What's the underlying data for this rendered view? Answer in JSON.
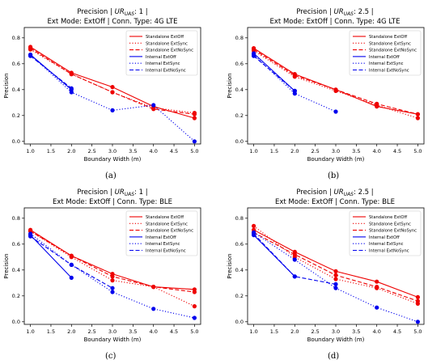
{
  "chart_data": [
    {
      "type": "line",
      "title_line1_prefix": "Precision | ",
      "title_line1_ur": "UR",
      "title_line1_sub": "UAS",
      "title_line1_suffix": ": 1 |",
      "title_line2": "Ext Mode: ExtOff | Conn. Type: 4G LTE",
      "xlabel": "Boundary  Width (m)",
      "ylabel": "Precision",
      "xlim": [
        0.85,
        5.15
      ],
      "ylim": [
        -0.02,
        0.88
      ],
      "xticks": [
        "1.0",
        "1.5",
        "2.0",
        "2.5",
        "3.0",
        "3.5",
        "4.0",
        "4.5",
        "5.0"
      ],
      "yticks": [
        "0.0",
        "0.2",
        "0.4",
        "0.6",
        "0.8"
      ],
      "legend_position": "top-right",
      "caption": "(a)",
      "series": [
        {
          "name": "Standalone ExtOff",
          "color": "#ee0000",
          "style": "solid",
          "x": [
            1,
            2,
            3,
            4,
            5
          ],
          "y": [
            0.73,
            0.53,
            0.42,
            0.27,
            0.18
          ]
        },
        {
          "name": "Standalone ExtSync",
          "color": "#ee0000",
          "style": "dotted",
          "x": [
            1,
            2,
            3,
            4,
            5
          ],
          "y": [
            0.71,
            0.52,
            0.38,
            0.26,
            0.22
          ]
        },
        {
          "name": "Standalone ExtNoSync",
          "color": "#ee0000",
          "style": "dashed",
          "x": [
            1,
            2,
            3,
            4,
            5
          ],
          "y": [
            0.72,
            0.52,
            0.38,
            0.25,
            0.21
          ]
        },
        {
          "name": "Internal ExtOff",
          "color": "#0000ee",
          "style": "solid",
          "x": [
            1,
            2
          ],
          "y": [
            0.67,
            0.4
          ]
        },
        {
          "name": "Internal ExtSync",
          "color": "#0000ee",
          "style": "dotted",
          "x": [
            1,
            2,
            3,
            4,
            5
          ],
          "y": [
            0.67,
            0.38,
            0.24,
            0.28,
            0.0
          ]
        },
        {
          "name": "Internal ExtNoSync",
          "color": "#0000ee",
          "style": "dashed",
          "x": [
            1,
            2
          ],
          "y": [
            0.66,
            0.41
          ]
        }
      ]
    },
    {
      "type": "line",
      "title_line1_prefix": "Precision | ",
      "title_line1_ur": "UR",
      "title_line1_sub": "UAS",
      "title_line1_suffix": ": 2.5 |",
      "title_line2": "Ext Mode: ExtOff | Conn. Type: 4G LTE",
      "xlabel": "Boundary  Width (m)",
      "ylabel": "Precision",
      "xlim": [
        0.85,
        5.15
      ],
      "ylim": [
        -0.02,
        0.88
      ],
      "xticks": [
        "1.0",
        "1.5",
        "2.0",
        "2.5",
        "3.0",
        "3.5",
        "4.0",
        "4.5",
        "5.0"
      ],
      "yticks": [
        "0.0",
        "0.2",
        "0.4",
        "0.6",
        "0.8"
      ],
      "legend_position": "top-right",
      "caption": "(b)",
      "series": [
        {
          "name": "Standalone ExtOff",
          "color": "#ee0000",
          "style": "solid",
          "x": [
            1,
            2,
            3,
            4,
            5
          ],
          "y": [
            0.72,
            0.52,
            0.4,
            0.27,
            0.21
          ]
        },
        {
          "name": "Standalone ExtSync",
          "color": "#ee0000",
          "style": "dotted",
          "x": [
            1,
            2,
            3,
            4,
            5
          ],
          "y": [
            0.7,
            0.5,
            0.39,
            0.28,
            0.18
          ]
        },
        {
          "name": "Standalone ExtNoSync",
          "color": "#ee0000",
          "style": "dashed",
          "x": [
            1,
            2,
            3,
            4,
            5
          ],
          "y": [
            0.71,
            0.51,
            0.4,
            0.29,
            0.21
          ]
        },
        {
          "name": "Internal ExtOff",
          "color": "#0000ee",
          "style": "solid",
          "x": [
            1,
            2
          ],
          "y": [
            0.68,
            0.39
          ]
        },
        {
          "name": "Internal ExtSync",
          "color": "#0000ee",
          "style": "dotted",
          "x": [
            1,
            2,
            3
          ],
          "y": [
            0.67,
            0.37,
            0.23
          ]
        },
        {
          "name": "Internal ExtNoSync",
          "color": "#0000ee",
          "style": "dashed",
          "x": [
            1,
            2
          ],
          "y": [
            0.66,
            0.39
          ]
        }
      ]
    },
    {
      "type": "line",
      "title_line1_prefix": "Precision | ",
      "title_line1_ur": "UR",
      "title_line1_sub": "UAS",
      "title_line1_suffix": ": 1 |",
      "title_line2": "Ext Mode: ExtOff | Conn. Type: BLE",
      "xlabel": "Boundary  Width (m)",
      "ylabel": "Precision",
      "xlim": [
        0.85,
        5.15
      ],
      "ylim": [
        -0.02,
        0.88
      ],
      "xticks": [
        "1.0",
        "1.5",
        "2.0",
        "2.5",
        "3.0",
        "3.5",
        "4.0",
        "4.5",
        "5.0"
      ],
      "yticks": [
        "0.0",
        "0.2",
        "0.4",
        "0.6",
        "0.8"
      ],
      "legend_position": "top-right",
      "caption": "(c)",
      "series": [
        {
          "name": "Standalone ExtOff",
          "color": "#ee0000",
          "style": "solid",
          "x": [
            1,
            2,
            3,
            4,
            5
          ],
          "y": [
            0.71,
            0.51,
            0.37,
            0.27,
            0.25
          ]
        },
        {
          "name": "Standalone ExtSync",
          "color": "#ee0000",
          "style": "dotted",
          "x": [
            1,
            2,
            3,
            4,
            5
          ],
          "y": [
            0.7,
            0.5,
            0.32,
            0.27,
            0.12
          ]
        },
        {
          "name": "Standalone ExtNoSync",
          "color": "#ee0000",
          "style": "dashed",
          "x": [
            1,
            2,
            3,
            4,
            5
          ],
          "y": [
            0.7,
            0.51,
            0.35,
            0.27,
            0.23
          ]
        },
        {
          "name": "Internal ExtOff",
          "color": "#0000ee",
          "style": "solid",
          "x": [
            1,
            2
          ],
          "y": [
            0.67,
            0.34
          ]
        },
        {
          "name": "Internal ExtSync",
          "color": "#0000ee",
          "style": "dotted",
          "x": [
            1,
            2,
            3,
            4,
            5
          ],
          "y": [
            0.68,
            0.44,
            0.23,
            0.1,
            0.03
          ]
        },
        {
          "name": "Internal ExtNoSync",
          "color": "#0000ee",
          "style": "dashed",
          "x": [
            1,
            2,
            3
          ],
          "y": [
            0.66,
            0.44,
            0.26
          ]
        }
      ]
    },
    {
      "type": "line",
      "title_line1_prefix": "Precision | ",
      "title_line1_ur": "UR",
      "title_line1_sub": "UAS",
      "title_line1_suffix": ": 2.5 |",
      "title_line2": "Ext Mode: ExtOff | Conn. Type: BLE",
      "xlabel": "Boundary  Width (m)",
      "ylabel": "Precision",
      "xlim": [
        0.85,
        5.15
      ],
      "ylim": [
        -0.02,
        0.88
      ],
      "xticks": [
        "1.0",
        "1.5",
        "2.0",
        "2.5",
        "3.0",
        "3.5",
        "4.0",
        "4.5",
        "5.0"
      ],
      "yticks": [
        "0.0",
        "0.2",
        "0.4",
        "0.6",
        "0.8"
      ],
      "legend_position": "top-right",
      "caption": "(d)",
      "series": [
        {
          "name": "Standalone ExtOff",
          "color": "#ee0000",
          "style": "solid",
          "x": [
            1,
            2,
            3,
            4,
            5
          ],
          "y": [
            0.71,
            0.54,
            0.39,
            0.31,
            0.19
          ]
        },
        {
          "name": "Standalone ExtSync",
          "color": "#ee0000",
          "style": "dotted",
          "x": [
            1,
            2,
            3,
            4,
            5
          ],
          "y": [
            0.74,
            0.5,
            0.33,
            0.26,
            0.14
          ]
        },
        {
          "name": "Standalone ExtNoSync",
          "color": "#ee0000",
          "style": "dashed",
          "x": [
            1,
            2,
            3,
            4,
            5
          ],
          "y": [
            0.69,
            0.52,
            0.36,
            0.27,
            0.16
          ]
        },
        {
          "name": "Internal ExtOff",
          "color": "#0000ee",
          "style": "solid",
          "x": [
            1,
            2
          ],
          "y": [
            0.67,
            0.35
          ]
        },
        {
          "name": "Internal ExtSync",
          "color": "#0000ee",
          "style": "dotted",
          "x": [
            1,
            2,
            3,
            4,
            5
          ],
          "y": [
            0.69,
            0.48,
            0.26,
            0.11,
            0.0
          ]
        },
        {
          "name": "Internal ExtNoSync",
          "color": "#0000ee",
          "style": "dashed",
          "x": [
            1,
            2,
            3
          ],
          "y": [
            0.68,
            0.35,
            0.29
          ]
        }
      ]
    }
  ]
}
